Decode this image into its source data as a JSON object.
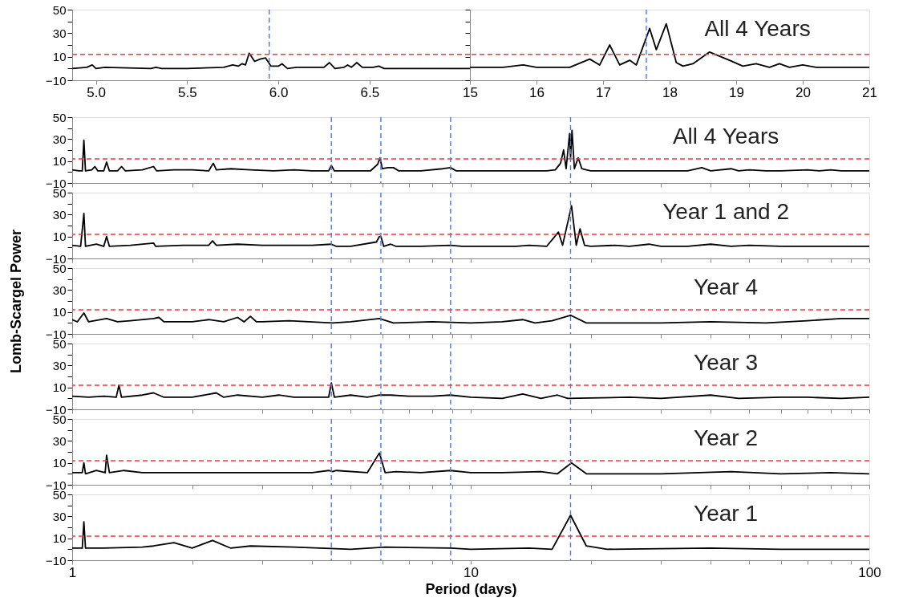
{
  "chart_data": [
    {
      "type": "line",
      "xlim": [
        4.87,
        7.05
      ],
      "xticks": [
        {
          "value": 5,
          "label": "5.0"
        },
        5.5,
        {
          "value": 6,
          "label": "6.0"
        },
        6.5
      ],
      "ylim": [
        -10,
        50
      ],
      "yticks": [
        50,
        {
          "value": 40,
          "label": null
        },
        30,
        {
          "value": 20,
          "label": null
        },
        10,
        {
          "value": 0,
          "label": null
        },
        -10
      ],
      "grid": false,
      "series": [
        {
          "color": "#000000",
          "x": [
            4.87,
            4.95,
            4.98,
            5.0,
            5.05,
            5.3,
            5.33,
            5.36,
            5.5,
            5.7,
            5.75,
            5.78,
            5.8,
            5.82,
            5.84,
            5.87,
            5.9,
            5.93,
            5.96,
            5.98,
            6.0,
            6.02,
            6.05,
            6.1,
            6.25,
            6.28,
            6.31,
            6.36,
            6.38,
            6.4,
            6.43,
            6.46,
            6.52,
            6.55,
            6.58,
            6.8,
            7.05
          ],
          "values": [
            0,
            1,
            3,
            0,
            1,
            0,
            1,
            0,
            0,
            1,
            3,
            2,
            4,
            3,
            13,
            6,
            8,
            9,
            2,
            2,
            2,
            4,
            0,
            1,
            1,
            5,
            0,
            1,
            3,
            1,
            5,
            1,
            1,
            2,
            0,
            0,
            0
          ]
        }
      ],
      "ref_lines": [
        {
          "axis": "y",
          "value": 12,
          "color": "#ff3333",
          "line_style": "dashed"
        },
        {
          "axis": "x",
          "value": 5.95,
          "color": "#3f78ff",
          "line_style": "dashed"
        }
      ]
    },
    {
      "type": "line",
      "xlim": [
        15,
        21
      ],
      "xticks": [
        15,
        16,
        17,
        18,
        19,
        20,
        21
      ],
      "ylim": [
        -10,
        50
      ],
      "yticks": [
        50,
        {
          "value": 40,
          "label": null
        },
        30,
        {
          "value": 20,
          "label": null
        },
        10,
        {
          "value": 0,
          "label": null
        },
        -10
      ],
      "grid": false,
      "tick_labels": "x",
      "annotations": [
        "All 4 Years"
      ],
      "series": [
        {
          "color": "#000000",
          "x": [
            15,
            15.5,
            15.8,
            16.0,
            16.2,
            16.5,
            16.8,
            16.95,
            17.1,
            17.25,
            17.4,
            17.5,
            17.7,
            17.8,
            17.95,
            18.1,
            18.2,
            18.35,
            18.6,
            18.9,
            19.1,
            19.3,
            19.5,
            19.65,
            19.8,
            20.0,
            20.2,
            20.6,
            21
          ],
          "values": [
            1,
            1,
            3,
            1,
            1,
            1,
            8,
            3,
            20,
            3,
            7,
            3,
            34,
            16,
            38,
            5,
            2,
            4,
            14,
            7,
            2,
            4,
            1,
            4,
            1,
            3,
            1,
            1,
            1
          ]
        }
      ],
      "ref_lines": [
        {
          "axis": "y",
          "value": 12,
          "color": "#ff3333",
          "line_style": "dashed"
        },
        {
          "axis": "x",
          "value": 17.65,
          "color": "#3f78ff",
          "line_style": "dashed"
        }
      ]
    },
    {
      "type": "line",
      "log": "x",
      "xlim": [
        1,
        100
      ],
      "xticks": [
        1,
        {
          "value": 2,
          "label": null
        },
        {
          "value": 3,
          "label": null
        },
        {
          "value": 4,
          "label": null
        },
        {
          "value": 5,
          "label": null
        },
        {
          "value": 6,
          "label": null
        },
        {
          "value": 7,
          "label": null
        },
        {
          "value": 8,
          "label": null
        },
        {
          "value": 9,
          "label": null
        },
        10,
        {
          "value": 20,
          "label": null
        },
        {
          "value": 30,
          "label": null
        },
        {
          "value": 40,
          "label": null
        },
        {
          "value": 50,
          "label": null
        },
        {
          "value": 60,
          "label": null
        },
        {
          "value": 70,
          "label": null
        },
        {
          "value": 80,
          "label": null
        },
        {
          "value": 90,
          "label": null
        },
        100
      ],
      "ylim": [
        -10,
        50
      ],
      "yticks": [
        50,
        {
          "value": 40,
          "label": null
        },
        30,
        {
          "value": 20,
          "label": null
        },
        10,
        {
          "value": 0,
          "label": null
        },
        -10
      ],
      "grid": false,
      "tick_labels": "y",
      "annotations": [
        "All 4 Years"
      ],
      "series": [
        {
          "color": "#000000",
          "x": [
            1.0,
            1.04,
            1.06,
            1.07,
            1.08,
            1.12,
            1.14,
            1.16,
            1.2,
            1.22,
            1.24,
            1.3,
            1.33,
            1.36,
            1.5,
            1.6,
            1.63,
            1.8,
            2.0,
            2.2,
            2.26,
            2.3,
            2.5,
            2.8,
            3.2,
            3.6,
            4.0,
            4.4,
            4.47,
            4.55,
            5.0,
            5.6,
            5.84,
            5.92,
            6.0,
            6.2,
            6.4,
            6.6,
            7.5,
            8.5,
            8.9,
            9.2,
            10,
            12,
            13.2,
            14.5,
            15.5,
            16.3,
            16.8,
            17.1,
            17.35,
            17.7,
            17.8,
            17.95,
            18.2,
            18.6,
            19.0,
            19.5,
            20,
            22,
            25,
            30,
            35,
            38,
            40,
            45,
            47,
            50,
            55,
            60,
            70,
            75,
            80,
            85,
            100
          ],
          "values": [
            2,
            1,
            1,
            29,
            1,
            2,
            5,
            1,
            1,
            9,
            1,
            1,
            5,
            1,
            2,
            5,
            1,
            2,
            2,
            1,
            8,
            2,
            3,
            2,
            1,
            2,
            1,
            1,
            6,
            1,
            1,
            1,
            7,
            13,
            3,
            4,
            4,
            1,
            1,
            3,
            4,
            1,
            1,
            1,
            1,
            1,
            1,
            2,
            8,
            20,
            3,
            35,
            13,
            38,
            3,
            13,
            3,
            2,
            1,
            1,
            1,
            1,
            1,
            4,
            1,
            3,
            1,
            2,
            1,
            1,
            2,
            1,
            2,
            1,
            1
          ]
        }
      ],
      "ref_lines": [
        {
          "axis": "y",
          "value": 12,
          "color": "#ff3333",
          "line_style": "dashed"
        },
        {
          "axis": "x",
          "value": 4.47,
          "color": "#3f78ff",
          "line_style": "dashed"
        },
        {
          "axis": "x",
          "value": 5.95,
          "color": "#3f78ff",
          "line_style": "dashed"
        },
        {
          "axis": "x",
          "value": 8.9,
          "color": "#3f78ff",
          "line_style": "dashed"
        },
        {
          "axis": "x",
          "value": 17.8,
          "color": "#3f78ff",
          "line_style": "dashed"
        }
      ]
    },
    {
      "type": "line",
      "log": "x",
      "xlim": [
        1,
        100
      ],
      "xticks": [
        1,
        {
          "value": 2,
          "label": null
        },
        {
          "value": 3,
          "label": null
        },
        {
          "value": 4,
          "label": null
        },
        {
          "value": 5,
          "label": null
        },
        {
          "value": 6,
          "label": null
        },
        {
          "value": 7,
          "label": null
        },
        {
          "value": 8,
          "label": null
        },
        {
          "value": 9,
          "label": null
        },
        10,
        {
          "value": 20,
          "label": null
        },
        {
          "value": 30,
          "label": null
        },
        {
          "value": 40,
          "label": null
        },
        {
          "value": 50,
          "label": null
        },
        {
          "value": 60,
          "label": null
        },
        {
          "value": 70,
          "label": null
        },
        {
          "value": 80,
          "label": null
        },
        {
          "value": 90,
          "label": null
        },
        100
      ],
      "ylim": [
        -10,
        50
      ],
      "yticks": [
        50,
        {
          "value": 40,
          "label": null
        },
        30,
        {
          "value": 20,
          "label": null
        },
        10,
        {
          "value": 0,
          "label": null
        },
        -10
      ],
      "grid": false,
      "tick_labels": "y",
      "annotations": [
        "Year 1 and 2"
      ],
      "series": [
        {
          "color": "#000000",
          "x": [
            1.0,
            1.05,
            1.07,
            1.08,
            1.15,
            1.2,
            1.22,
            1.24,
            1.4,
            1.6,
            1.62,
            1.9,
            2.2,
            2.25,
            2.3,
            2.6,
            3.0,
            3.5,
            4.0,
            4.47,
            4.6,
            5.0,
            5.8,
            5.9,
            5.95,
            6.05,
            6.3,
            6.5,
            7.5,
            8.9,
            9.5,
            10,
            12,
            13,
            14,
            15.5,
            16.6,
            17.0,
            17.9,
            18.4,
            18.8,
            19.3,
            20,
            23,
            25,
            28,
            30,
            35,
            40,
            45,
            50,
            60,
            70,
            80,
            100
          ],
          "values": [
            2,
            1,
            31,
            1,
            3,
            1,
            10,
            1,
            2,
            4,
            1,
            2,
            2,
            6,
            2,
            3,
            2,
            2,
            2,
            3,
            1,
            1,
            5,
            10,
            10,
            1,
            3,
            1,
            1,
            2,
            1,
            1,
            1,
            1,
            2,
            1,
            14,
            2,
            38,
            2,
            17,
            2,
            1,
            2,
            1,
            3,
            1,
            1,
            3,
            1,
            2,
            1,
            1,
            1,
            1
          ]
        }
      ],
      "ref_lines": [
        {
          "axis": "y",
          "value": 12,
          "color": "#ff3333",
          "line_style": "dashed"
        },
        {
          "axis": "x",
          "value": 4.47,
          "color": "#3f78ff",
          "line_style": "dashed"
        },
        {
          "axis": "x",
          "value": 5.95,
          "color": "#3f78ff",
          "line_style": "dashed"
        },
        {
          "axis": "x",
          "value": 8.9,
          "color": "#3f78ff",
          "line_style": "dashed"
        },
        {
          "axis": "x",
          "value": 17.8,
          "color": "#3f78ff",
          "line_style": "dashed"
        }
      ]
    },
    {
      "type": "line",
      "log": "x",
      "xlim": [
        1,
        100
      ],
      "xticks": [
        1,
        {
          "value": 2,
          "label": null
        },
        {
          "value": 3,
          "label": null
        },
        {
          "value": 4,
          "label": null
        },
        {
          "value": 5,
          "label": null
        },
        {
          "value": 6,
          "label": null
        },
        {
          "value": 7,
          "label": null
        },
        {
          "value": 8,
          "label": null
        },
        {
          "value": 9,
          "label": null
        },
        10,
        {
          "value": 20,
          "label": null
        },
        {
          "value": 30,
          "label": null
        },
        {
          "value": 40,
          "label": null
        },
        {
          "value": 50,
          "label": null
        },
        {
          "value": 60,
          "label": null
        },
        {
          "value": 70,
          "label": null
        },
        {
          "value": 80,
          "label": null
        },
        {
          "value": 90,
          "label": null
        },
        100
      ],
      "ylim": [
        -10,
        50
      ],
      "yticks": [
        50,
        {
          "value": 40,
          "label": null
        },
        30,
        {
          "value": 20,
          "label": null
        },
        10,
        {
          "value": 0,
          "label": null
        },
        -10
      ],
      "grid": false,
      "tick_labels": "y",
      "ylabel": "Lomb-Scargel Power",
      "annotations": [
        "Year 4"
      ],
      "series": [
        {
          "color": "#000000",
          "x": [
            1.0,
            1.03,
            1.07,
            1.1,
            1.22,
            1.3,
            1.4,
            1.6,
            1.65,
            1.7,
            2.0,
            2.2,
            2.4,
            2.6,
            2.7,
            2.8,
            2.9,
            3.0,
            3.5,
            4.5,
            5.0,
            5.9,
            6.4,
            8,
            10,
            12,
            13.5,
            14.5,
            16,
            17.8,
            19.5,
            25,
            30,
            40,
            55,
            70,
            85,
            100
          ],
          "values": [
            3,
            1,
            9,
            1,
            4,
            1,
            2,
            4,
            5,
            1,
            1,
            3,
            1,
            5,
            1,
            6,
            1,
            1,
            2,
            0,
            1,
            4,
            0,
            1,
            0,
            1,
            3,
            0,
            2,
            7,
            0,
            0,
            0,
            1,
            0,
            2,
            4,
            4
          ]
        }
      ],
      "ref_lines": [
        {
          "axis": "y",
          "value": 12,
          "color": "#ff3333",
          "line_style": "dashed"
        },
        {
          "axis": "x",
          "value": 4.47,
          "color": "#3f78ff",
          "line_style": "dashed"
        },
        {
          "axis": "x",
          "value": 5.95,
          "color": "#3f78ff",
          "line_style": "dashed"
        },
        {
          "axis": "x",
          "value": 8.9,
          "color": "#3f78ff",
          "line_style": "dashed"
        },
        {
          "axis": "x",
          "value": 17.8,
          "color": "#3f78ff",
          "line_style": "dashed"
        }
      ]
    },
    {
      "type": "line",
      "log": "x",
      "xlim": [
        1,
        100
      ],
      "xticks": [
        1,
        {
          "value": 2,
          "label": null
        },
        {
          "value": 3,
          "label": null
        },
        {
          "value": 4,
          "label": null
        },
        {
          "value": 5,
          "label": null
        },
        {
          "value": 6,
          "label": null
        },
        {
          "value": 7,
          "label": null
        },
        {
          "value": 8,
          "label": null
        },
        {
          "value": 9,
          "label": null
        },
        10,
        {
          "value": 20,
          "label": null
        },
        {
          "value": 30,
          "label": null
        },
        {
          "value": 40,
          "label": null
        },
        {
          "value": 50,
          "label": null
        },
        {
          "value": 60,
          "label": null
        },
        {
          "value": 70,
          "label": null
        },
        {
          "value": 80,
          "label": null
        },
        {
          "value": 90,
          "label": null
        },
        100
      ],
      "ylim": [
        -10,
        50
      ],
      "yticks": [
        50,
        {
          "value": 40,
          "label": null
        },
        30,
        {
          "value": 20,
          "label": null
        },
        10,
        {
          "value": 0,
          "label": null
        },
        -10
      ],
      "grid": false,
      "tick_labels": "y",
      "annotations": [
        "Year 3"
      ],
      "series": [
        {
          "color": "#000000",
          "x": [
            1.0,
            1.1,
            1.2,
            1.29,
            1.31,
            1.33,
            1.5,
            1.6,
            1.7,
            2.0,
            2.3,
            2.4,
            2.6,
            3.0,
            3.3,
            3.6,
            4.0,
            4.4,
            4.47,
            4.55,
            5.0,
            5.5,
            5.9,
            6.3,
            7,
            8,
            8.9,
            10,
            12,
            13.5,
            15,
            16.5,
            17.5,
            25,
            30,
            40,
            47,
            60,
            70,
            85,
            100
          ],
          "values": [
            2,
            1,
            2,
            1,
            12,
            1,
            3,
            5,
            1,
            1,
            5,
            1,
            3,
            1,
            3,
            1,
            1,
            1,
            14,
            1,
            3,
            1,
            3,
            3,
            2,
            2,
            3,
            1,
            0,
            4,
            0,
            3,
            0,
            1,
            0,
            3,
            0,
            1,
            1,
            0,
            1
          ]
        }
      ],
      "ref_lines": [
        {
          "axis": "y",
          "value": 12,
          "color": "#ff3333",
          "line_style": "dashed"
        },
        {
          "axis": "x",
          "value": 4.47,
          "color": "#3f78ff",
          "line_style": "dashed"
        },
        {
          "axis": "x",
          "value": 5.95,
          "color": "#3f78ff",
          "line_style": "dashed"
        },
        {
          "axis": "x",
          "value": 8.9,
          "color": "#3f78ff",
          "line_style": "dashed"
        },
        {
          "axis": "x",
          "value": 17.8,
          "color": "#3f78ff",
          "line_style": "dashed"
        }
      ]
    },
    {
      "type": "line",
      "log": "x",
      "xlim": [
        1,
        100
      ],
      "xticks": [
        1,
        {
          "value": 2,
          "label": null
        },
        {
          "value": 3,
          "label": null
        },
        {
          "value": 4,
          "label": null
        },
        {
          "value": 5,
          "label": null
        },
        {
          "value": 6,
          "label": null
        },
        {
          "value": 7,
          "label": null
        },
        {
          "value": 8,
          "label": null
        },
        {
          "value": 9,
          "label": null
        },
        10,
        {
          "value": 20,
          "label": null
        },
        {
          "value": 30,
          "label": null
        },
        {
          "value": 40,
          "label": null
        },
        {
          "value": 50,
          "label": null
        },
        {
          "value": 60,
          "label": null
        },
        {
          "value": 70,
          "label": null
        },
        {
          "value": 80,
          "label": null
        },
        {
          "value": 90,
          "label": null
        },
        100
      ],
      "ylim": [
        -10,
        50
      ],
      "yticks": [
        50,
        {
          "value": 40,
          "label": null
        },
        30,
        {
          "value": 20,
          "label": null
        },
        10,
        {
          "value": 0,
          "label": null
        },
        -10
      ],
      "grid": false,
      "tick_labels": "y",
      "annotations": [
        "Year 2"
      ],
      "series": [
        {
          "color": "#000000",
          "x": [
            1.0,
            1.06,
            1.07,
            1.08,
            1.15,
            1.21,
            1.22,
            1.24,
            1.35,
            1.5,
            2.0,
            3.0,
            4.0,
            4.4,
            4.5,
            4.6,
            5.5,
            5.9,
            6.1,
            6.5,
            7.5,
            8.9,
            10,
            12,
            15,
            16.5,
            17.9,
            19.5,
            30,
            45,
            60,
            80,
            100
          ],
          "values": [
            1,
            1,
            10,
            0,
            3,
            1,
            17,
            1,
            3,
            1,
            1,
            1,
            1,
            3,
            2,
            3,
            1,
            19,
            1,
            2,
            1,
            3,
            1,
            1,
            2,
            0,
            10,
            0,
            0,
            2,
            0,
            1,
            0
          ]
        }
      ],
      "ref_lines": [
        {
          "axis": "y",
          "value": 12,
          "color": "#ff3333",
          "line_style": "dashed"
        },
        {
          "axis": "x",
          "value": 4.47,
          "color": "#3f78ff",
          "line_style": "dashed"
        },
        {
          "axis": "x",
          "value": 5.95,
          "color": "#3f78ff",
          "line_style": "dashed"
        },
        {
          "axis": "x",
          "value": 8.9,
          "color": "#3f78ff",
          "line_style": "dashed"
        },
        {
          "axis": "x",
          "value": 17.8,
          "color": "#3f78ff",
          "line_style": "dashed"
        }
      ]
    },
    {
      "type": "line",
      "log": "x",
      "xlim": [
        1,
        100
      ],
      "xticks": [
        1,
        {
          "value": 2,
          "label": null
        },
        {
          "value": 3,
          "label": null
        },
        {
          "value": 4,
          "label": null
        },
        {
          "value": 5,
          "label": null
        },
        {
          "value": 6,
          "label": null
        },
        {
          "value": 7,
          "label": null
        },
        {
          "value": 8,
          "label": null
        },
        {
          "value": 9,
          "label": null
        },
        10,
        {
          "value": 20,
          "label": null
        },
        {
          "value": 30,
          "label": null
        },
        {
          "value": 40,
          "label": null
        },
        {
          "value": 50,
          "label": null
        },
        {
          "value": 60,
          "label": null
        },
        {
          "value": 70,
          "label": null
        },
        {
          "value": 80,
          "label": null
        },
        {
          "value": 90,
          "label": null
        },
        100
      ],
      "ylim": [
        -10,
        50
      ],
      "yticks": [
        50,
        {
          "value": 40,
          "label": null
        },
        30,
        {
          "value": 20,
          "label": null
        },
        10,
        {
          "value": 0,
          "label": null
        },
        -10
      ],
      "grid": false,
      "xlabel": "Period (days)",
      "annotations": [
        "Year 1"
      ],
      "series": [
        {
          "color": "#000000",
          "x": [
            1.0,
            1.06,
            1.07,
            1.08,
            1.2,
            1.5,
            1.6,
            1.8,
            2.0,
            2.25,
            2.5,
            2.8,
            3.6,
            5,
            6.1,
            8.9,
            10,
            14,
            16,
            17.8,
            19.5,
            22,
            40,
            60,
            100
          ],
          "values": [
            1,
            1,
            25,
            1,
            1,
            2,
            3,
            6,
            1,
            8,
            1,
            3,
            2,
            0,
            2,
            1,
            0,
            1,
            0,
            31,
            3,
            0,
            1,
            0,
            0
          ]
        }
      ],
      "ref_lines": [
        {
          "axis": "y",
          "value": 12,
          "color": "#ff3333",
          "line_style": "dashed"
        },
        {
          "axis": "x",
          "value": 4.47,
          "color": "#3f78ff",
          "line_style": "dashed"
        },
        {
          "axis": "x",
          "value": 5.95,
          "color": "#3f78ff",
          "line_style": "dashed"
        },
        {
          "axis": "x",
          "value": 8.9,
          "color": "#3f78ff",
          "line_style": "dashed"
        },
        {
          "axis": "x",
          "value": 17.8,
          "color": "#3f78ff",
          "line_style": "dashed"
        }
      ]
    }
  ]
}
